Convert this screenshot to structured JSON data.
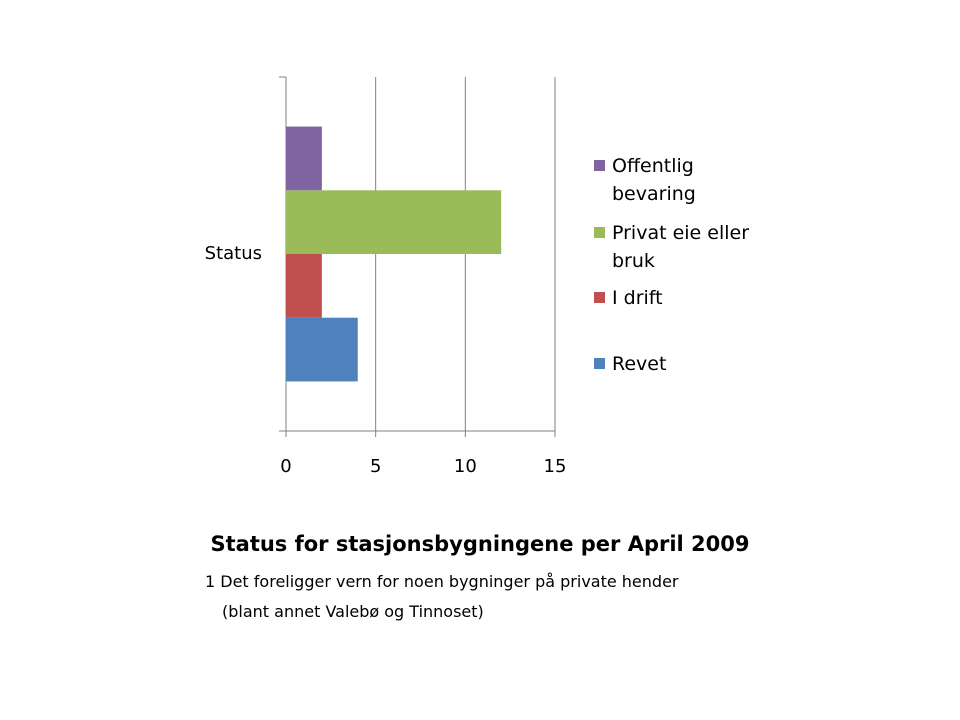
{
  "chart_data": {
    "type": "bar",
    "orientation": "horizontal",
    "title": "Status for stasjonsbygningene per April 2009",
    "notes": [
      "1 Det foreligger vern for noen bygninger på private hender",
      "(blant annet Valebø og Tinnoset)"
    ],
    "categories": [
      "Status"
    ],
    "series": [
      {
        "name": "Revet",
        "color": "#4f81bd",
        "values": [
          4
        ]
      },
      {
        "name": "I drift",
        "color": "#c0504d",
        "values": [
          2
        ]
      },
      {
        "name": "Privat eie eller bruk",
        "color": "#9bbb59",
        "values": [
          12
        ]
      },
      {
        "name": "Offentlig bevaring",
        "color": "#8064a2",
        "values": [
          2
        ]
      }
    ],
    "xlim": [
      0,
      15
    ],
    "xticks": [
      0,
      5,
      10,
      15
    ],
    "grid": true
  }
}
